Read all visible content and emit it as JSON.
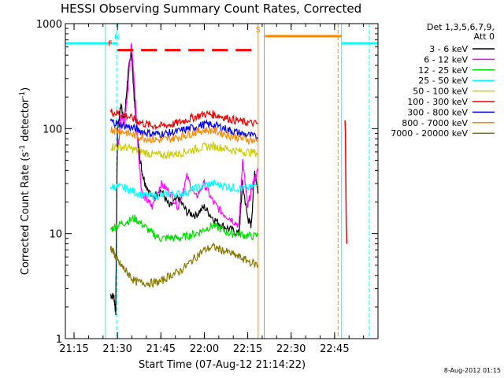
{
  "chart_data": {
    "type": "line",
    "title": "HESSI Observing Summary Count Rates, Corrected",
    "xlabel": "Start Time (07-Aug-12 21:14:22)",
    "ylabel_parts": [
      "Corrected Count Rate (s",
      "-1",
      " detector",
      "-1",
      ")"
    ],
    "y_scale": "log",
    "ylim": [
      1,
      1000
    ],
    "xlim_minutes": [
      21.2,
      23.0
    ],
    "x_ticks": [
      {
        "t": 21.25,
        "label": "21:15"
      },
      {
        "t": 21.5,
        "label": "21:30"
      },
      {
        "t": 21.75,
        "label": "21:45"
      },
      {
        "t": 22.0,
        "label": "22:00"
      },
      {
        "t": 22.25,
        "label": "22:15"
      },
      {
        "t": 22.5,
        "label": "22:30"
      },
      {
        "t": 22.75,
        "label": "22:45"
      }
    ],
    "y_ticks": [
      {
        "v": 1,
        "label": "1"
      },
      {
        "v": 10,
        "label": "10"
      },
      {
        "v": 100,
        "label": "100"
      },
      {
        "v": 1000,
        "label": "1000"
      }
    ],
    "legend_header": [
      "Det 1,3,5,6,7,9,",
      "Att 0"
    ],
    "series": [
      {
        "name": "3 - 6 keV",
        "color": "#000000",
        "t": [
          21.46,
          21.48,
          21.49,
          21.5,
          21.52,
          21.54,
          21.56,
          21.58,
          21.6,
          21.62,
          21.64,
          21.66,
          21.7,
          21.75,
          21.8,
          21.85,
          21.9,
          21.95,
          22.0,
          22.05,
          22.1,
          22.15,
          22.2,
          22.22,
          22.25,
          22.27,
          22.29,
          22.31
        ],
        "v": [
          2.6,
          2.5,
          1.8,
          100,
          170,
          120,
          320,
          560,
          160,
          70,
          40,
          30,
          22,
          26,
          18,
          22,
          16,
          15,
          18,
          14,
          12,
          11,
          10,
          30,
          14,
          12,
          40,
          25
        ]
      },
      {
        "name": "6 - 12 keV",
        "color": "#ff00ff",
        "t": [
          21.5,
          21.52,
          21.54,
          21.56,
          21.58,
          21.6,
          21.62,
          21.64,
          21.66,
          21.7,
          21.75,
          21.8,
          21.85,
          21.9,
          21.95,
          22.0,
          22.05,
          22.1,
          22.15,
          22.2,
          22.22,
          22.25,
          22.28,
          22.31
        ],
        "v": [
          60,
          130,
          110,
          250,
          700,
          220,
          60,
          25,
          22,
          18,
          30,
          25,
          18,
          35,
          22,
          30,
          20,
          16,
          14,
          12,
          50,
          18,
          30,
          40
        ]
      },
      {
        "name": "12 - 25 keV",
        "color": "#00dd00",
        "t": [
          21.46,
          21.5,
          21.55,
          21.6,
          21.65,
          21.7,
          21.75,
          21.8,
          21.85,
          21.9,
          21.95,
          22.0,
          22.05,
          22.1,
          22.15,
          22.2,
          22.25,
          22.31
        ],
        "v": [
          11,
          12,
          13,
          14,
          12,
          10,
          9,
          9.2,
          9,
          9.5,
          10,
          11,
          12,
          11,
          10,
          10,
          9.5,
          9.5
        ]
      },
      {
        "name": "25 - 50 keV",
        "color": "#00ffff",
        "t": [
          21.46,
          21.5,
          21.55,
          21.6,
          21.65,
          21.7,
          21.75,
          21.8,
          21.85,
          21.9,
          21.95,
          22.0,
          22.05,
          22.1,
          22.15,
          22.2,
          22.25,
          22.31
        ],
        "v": [
          28,
          28,
          27,
          25,
          23,
          23,
          23,
          24,
          24,
          25,
          27,
          29,
          30,
          29,
          28,
          27,
          27,
          29
        ]
      },
      {
        "name": "50 - 100 keV",
        "color": "#cccc00",
        "t": [
          21.46,
          21.5,
          21.55,
          21.6,
          21.65,
          21.7,
          21.75,
          21.8,
          21.85,
          21.9,
          21.95,
          22.0,
          22.05,
          22.1,
          22.15,
          22.2,
          22.25,
          22.31
        ],
        "v": [
          68,
          67,
          66,
          63,
          60,
          57,
          56,
          57,
          58,
          61,
          64,
          67,
          68,
          66,
          63,
          61,
          60,
          59
        ]
      },
      {
        "name": "100 - 300 keV",
        "color": "#ee0000",
        "t": [
          21.46,
          21.5,
          21.55,
          21.6,
          21.65,
          21.7,
          21.75,
          21.8,
          21.85,
          21.9,
          21.95,
          22.0,
          22.05,
          22.1,
          22.15,
          22.2,
          22.25,
          22.31
        ],
        "v": [
          145,
          140,
          133,
          122,
          112,
          107,
          106,
          109,
          114,
          122,
          130,
          138,
          137,
          131,
          124,
          118,
          114,
          111
        ]
      },
      {
        "name": "300 - 800 keV",
        "color": "#0000ee",
        "t": [
          21.46,
          21.5,
          21.55,
          21.6,
          21.65,
          21.7,
          21.75,
          21.8,
          21.85,
          21.9,
          21.95,
          22.0,
          22.05,
          22.1,
          22.15,
          22.2,
          22.25,
          22.31
        ],
        "v": [
          118,
          112,
          106,
          100,
          93,
          90,
          89,
          91,
          94,
          99,
          104,
          110,
          109,
          103,
          96,
          91,
          87,
          82
        ]
      },
      {
        "name": "800 - 7000 keV",
        "color": "#ff8800",
        "t": [
          21.46,
          21.5,
          21.55,
          21.6,
          21.65,
          21.7,
          21.75,
          21.8,
          21.85,
          21.9,
          21.95,
          22.0,
          22.05,
          22.1,
          22.15,
          22.2,
          22.25,
          22.31
        ],
        "v": [
          100,
          96,
          92,
          86,
          82,
          79,
          78,
          80,
          83,
          88,
          93,
          97,
          96,
          91,
          86,
          82,
          79,
          76
        ]
      },
      {
        "name": "7000 - 20000 keV",
        "color": "#887700",
        "t": [
          21.46,
          21.48,
          21.5,
          21.53,
          21.56,
          21.6,
          21.65,
          21.7,
          21.75,
          21.8,
          21.85,
          21.9,
          21.95,
          22.0,
          22.05,
          22.1,
          22.15,
          22.2,
          22.25,
          22.31
        ],
        "v": [
          7.5,
          6.5,
          5.5,
          4.8,
          4.2,
          3.5,
          3.4,
          3.4,
          3.5,
          4.0,
          4.3,
          5.0,
          6.0,
          7.0,
          7.5,
          7.0,
          6.5,
          6.0,
          5.5,
          5.0
        ]
      }
    ],
    "post_gap_spike": {
      "t_start": 22.81,
      "t_end": 22.82,
      "v": [
        120,
        90,
        30,
        12,
        8
      ]
    },
    "flags": [
      {
        "label": "N",
        "color": "#00ffff",
        "segments": [
          [
            21.2,
            21.5
          ],
          [
            22.79,
            23.0
          ]
        ],
        "v": 650
      },
      {
        "label": "F",
        "color": "#ff0000",
        "dashed": true,
        "segments": [
          [
            21.5,
            22.31
          ]
        ],
        "v": 560
      },
      {
        "label": "S",
        "color": "#ff8800",
        "segments": [
          [
            22.35,
            22.79
          ]
        ],
        "v": 760
      }
    ],
    "vertical_markers": [
      {
        "t": 21.43,
        "color": "#00ffff",
        "style": "solid"
      },
      {
        "t": 21.495,
        "color": "#00ffff",
        "style": "dashed"
      },
      {
        "t": 22.31,
        "color": "#ff8800",
        "style": "solid"
      },
      {
        "t": 22.345,
        "color": "#ff8800",
        "style": "solid"
      },
      {
        "t": 22.77,
        "color": "#ff8800",
        "style": "dashed"
      },
      {
        "t": 22.79,
        "color": "#00ffff",
        "style": "solid"
      },
      {
        "t": 22.95,
        "color": "#00ffff",
        "style": "dashed"
      }
    ],
    "timestamp": "8-Aug-2012 01:15"
  }
}
